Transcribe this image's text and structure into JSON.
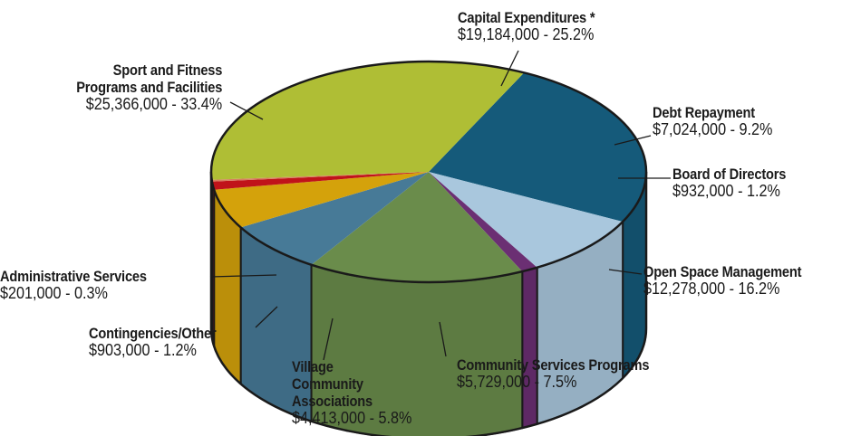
{
  "chart_data": {
    "type": "pie",
    "title": "",
    "slices": [
      {
        "name": "Capital Expenditures *",
        "label": "$19,184,000 - 25.2%",
        "value": 19184000,
        "percent": 25.2,
        "color": "#155a7a"
      },
      {
        "name": "Debt Repayment",
        "label": "$7,024,000 - 9.2%",
        "value": 7024000,
        "percent": 9.2,
        "color": "#a9c7dd"
      },
      {
        "name": "Board of Directors",
        "label": "$932,000 - 1.2%",
        "value": 932000,
        "percent": 1.2,
        "color": "#6b2f73"
      },
      {
        "name": "Open Space Management",
        "label": "$12,278,000 - 16.2%",
        "value": 12278000,
        "percent": 16.2,
        "color": "#6a8c4b"
      },
      {
        "name": "Community Services Programs",
        "label": "$5,729,000 - 7.5%",
        "value": 5729000,
        "percent": 7.5,
        "color": "#477a97"
      },
      {
        "name": "Village Community Associations",
        "label": "$4,413,000 - 5.8%",
        "value": 4413000,
        "percent": 5.8,
        "color": "#d4a20b"
      },
      {
        "name": "Contingencies/Other",
        "label": "$903,000 - 1.2%",
        "value": 903000,
        "percent": 1.2,
        "color": "#c0131a"
      },
      {
        "name": "Administrative Services",
        "label": "$201,000 - 0.3%",
        "value": 201000,
        "percent": 0.3,
        "color": "#d77f5f"
      },
      {
        "name": "Sport and Fitness Programs and Facilities",
        "label": "$25,366,000 - 33.4%",
        "value": 25366000,
        "percent": 33.4,
        "color": "#afbe35"
      }
    ]
  }
}
